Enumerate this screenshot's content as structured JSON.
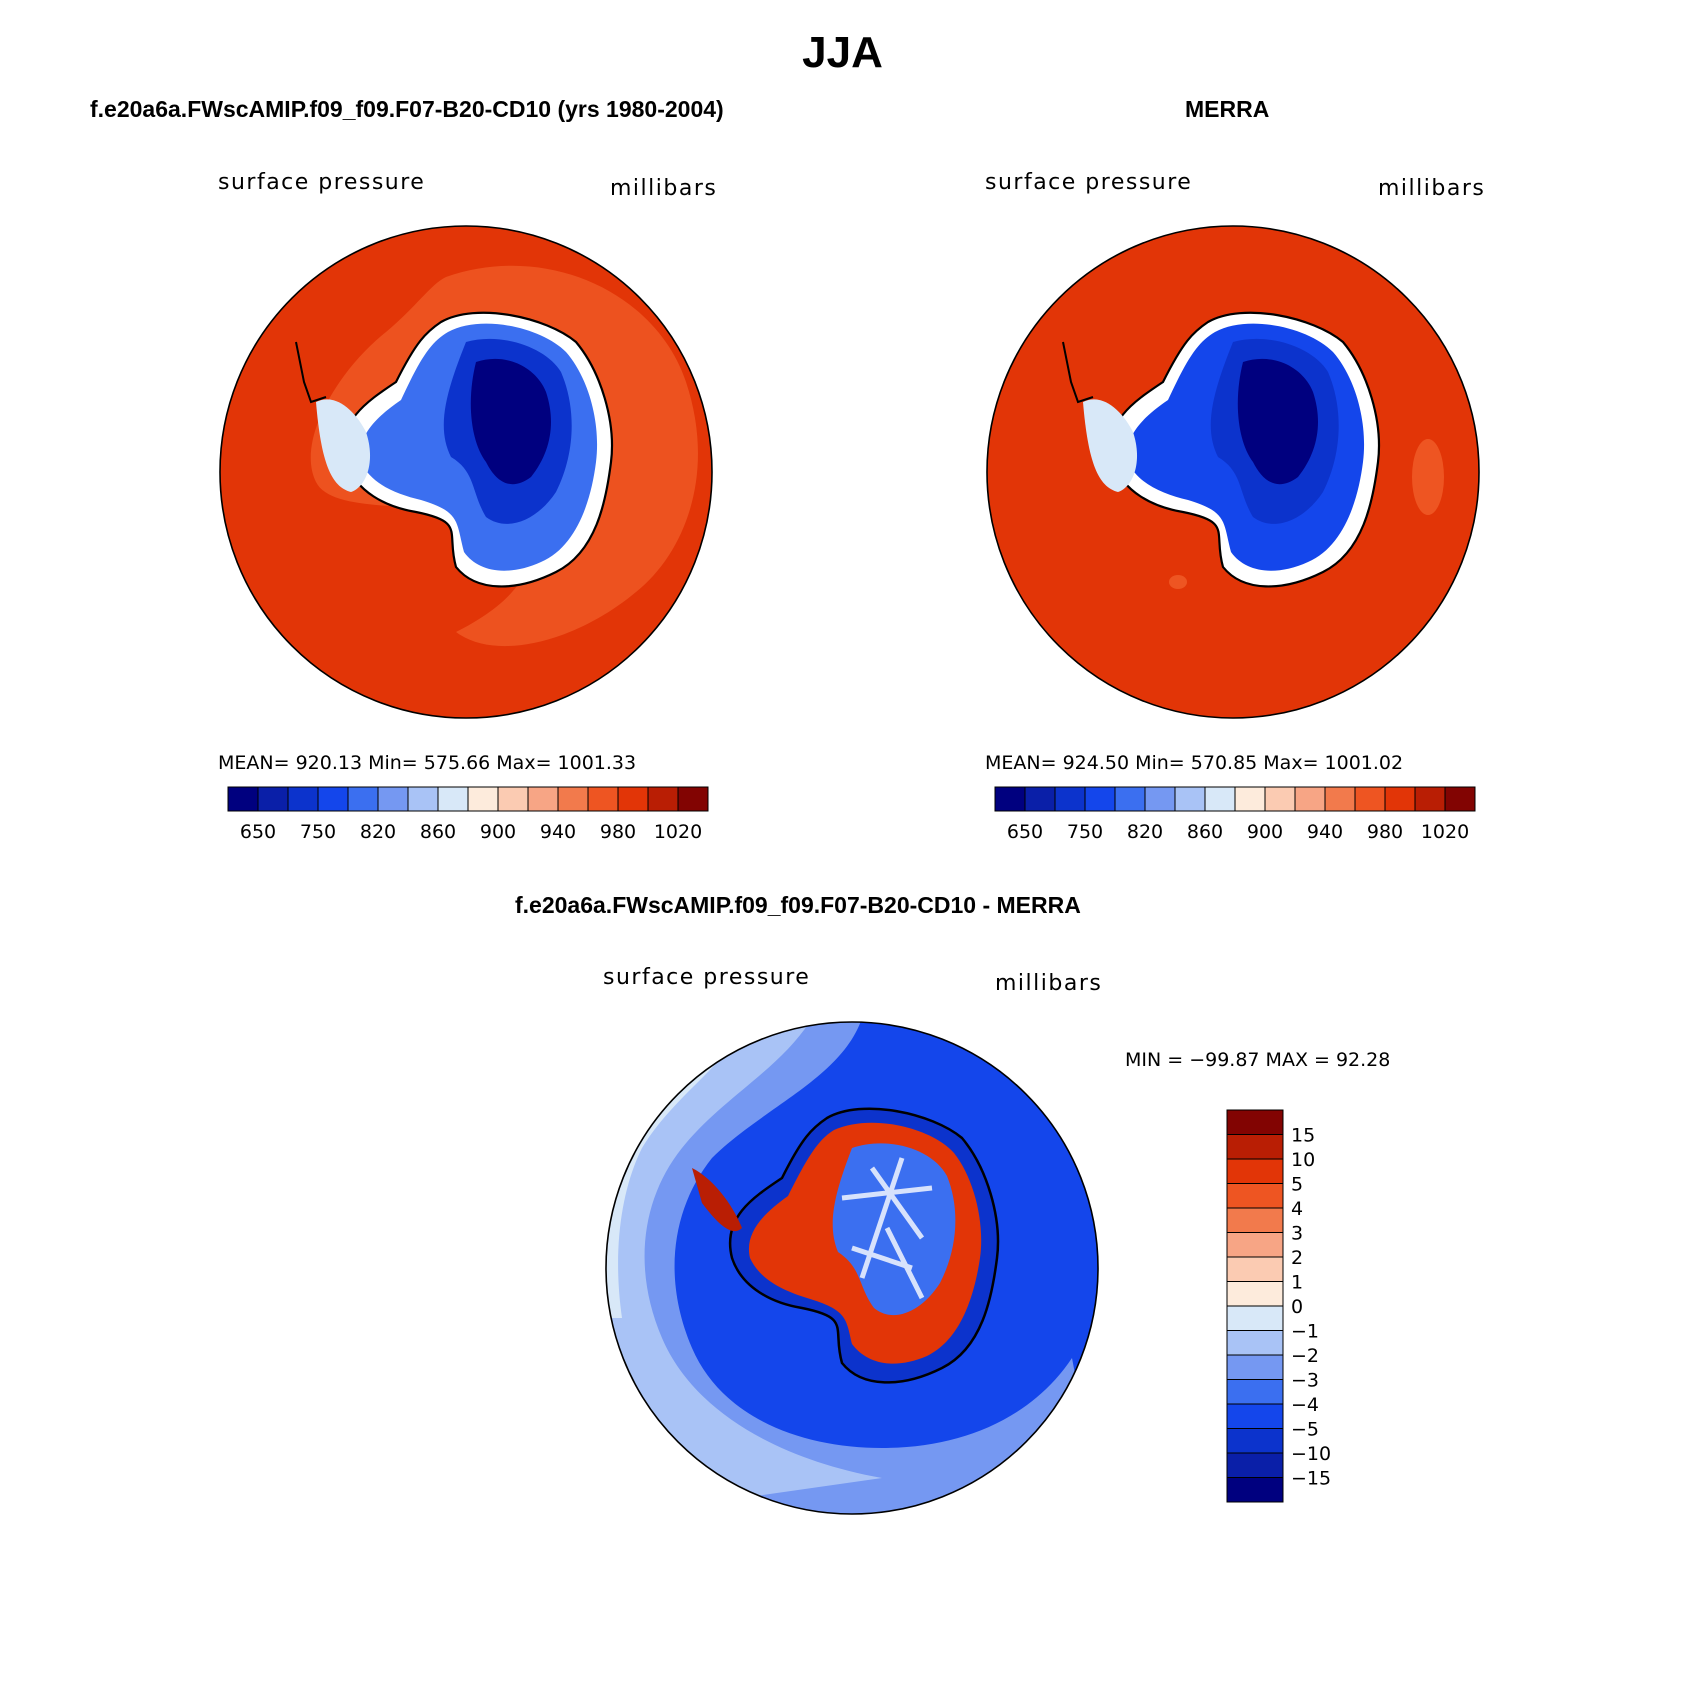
{
  "title": "JJA",
  "panels": [
    {
      "title": "f.e20a6a.FWscAMIP.f09_f09.F07-B20-CD10 (yrs 1980-2004)",
      "left_label": "surface pressure",
      "right_label": "millibars",
      "stats": "MEAN= 920.13   Min= 575.66   Max= 1001.33"
    },
    {
      "title": "MERRA",
      "left_label": "surface pressure",
      "right_label": "millibars",
      "stats": "MEAN= 924.50   Min= 570.85   Max= 1001.02"
    },
    {
      "title": "f.e20a6a.FWscAMIP.f09_f09.F07-B20-CD10 - MERRA",
      "left_label": "surface pressure",
      "right_label": "millibars",
      "stats": "MIN = −99.87 MAX =   92.28"
    }
  ],
  "colorbar_abs": {
    "colors": [
      "#00007f",
      "#0a1fa8",
      "#0c33cc",
      "#1446eb",
      "#3b6ff0",
      "#7598f2",
      "#a9c3f6",
      "#d8e8f8",
      "#fdebdc",
      "#fbcbb2",
      "#f7a585",
      "#f27a4c",
      "#ee5522",
      "#e23507",
      "#b91e04",
      "#820402"
    ],
    "labels": [
      "650",
      "750",
      "820",
      "860",
      "900",
      "940",
      "980",
      "1020"
    ]
  },
  "colorbar_diff": {
    "colors": [
      "#00007f",
      "#0a1fa8",
      "#0c33cc",
      "#1446eb",
      "#3b6ff0",
      "#7598f2",
      "#a9c3f6",
      "#d8e8f8",
      "#fdebdc",
      "#fbcbb2",
      "#f7a585",
      "#f27a4c",
      "#ee5522",
      "#e23507",
      "#b91e04",
      "#820402"
    ],
    "labels": [
      "−15",
      "−10",
      "−5",
      "−4",
      "−3",
      "−2",
      "−1",
      "0",
      "1",
      "2",
      "3",
      "4",
      "5",
      "10",
      "15"
    ]
  }
}
